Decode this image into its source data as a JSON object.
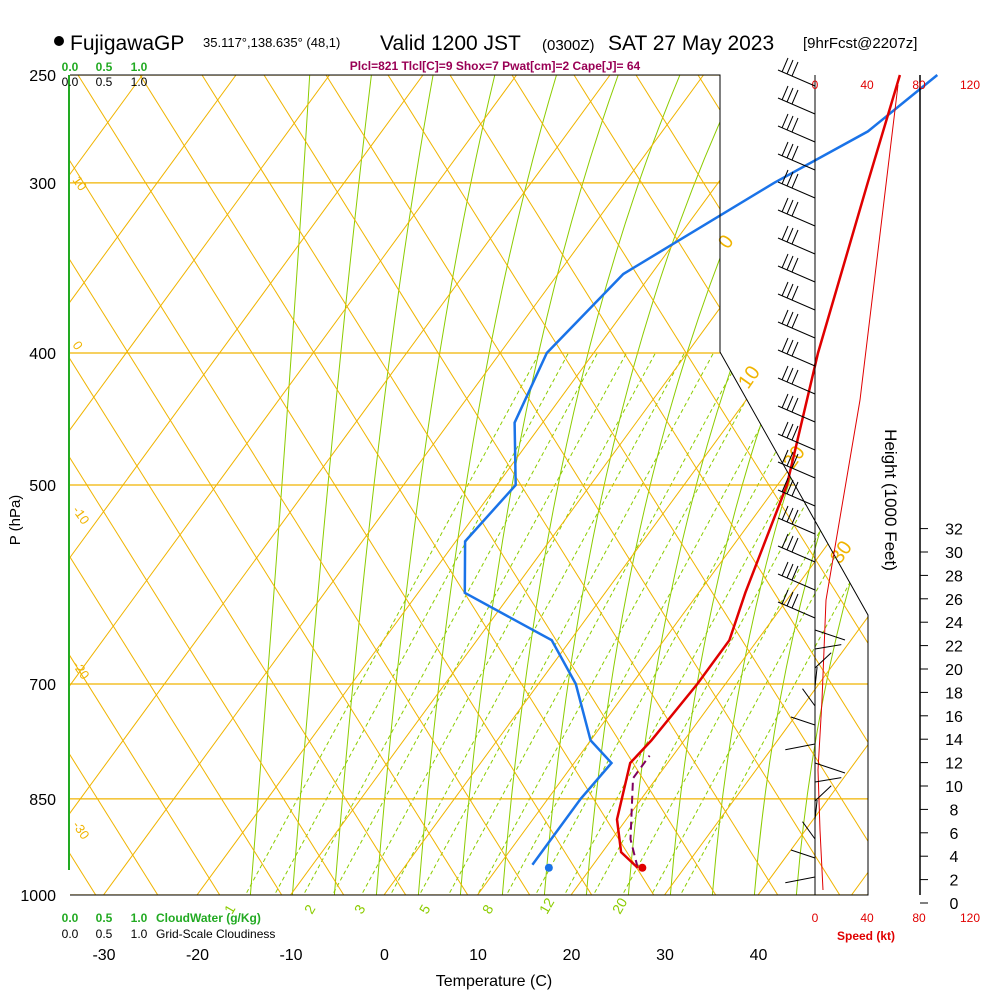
{
  "header": {
    "station": "FujigawaGP",
    "coords": "35.117°,138.635° (48,1)",
    "valid": "Valid 1200 JST",
    "zulu": "(0300Z)",
    "date": "SAT 27 May 2023",
    "fcst": "[9hrFcst@2207z]",
    "indices": "Plcl=821 Tlcl[C]=9 Shox=7 Pwat[cm]=2 Cape[J]= 64"
  },
  "colors": {
    "isobar": "#f0b400",
    "temp": "#e00000",
    "dew": "#1a73e8",
    "mixing": "#8ccc00",
    "parcel": "#800060",
    "cloud": "#22aa22",
    "speed": "#e00000"
  },
  "chart_data": {
    "type": "line",
    "xlabel": "Temperature (C)",
    "ylabel": "P (hPa)",
    "height_label": "Height (1000 Feet)",
    "xticks": [
      "-30",
      "-20",
      "-10",
      "0",
      "10",
      "20",
      "30",
      "40"
    ],
    "pressure_ticks": [
      "250",
      "300",
      "400",
      "500",
      "700",
      "850",
      "1000"
    ],
    "height_ticks": [
      "0",
      "2",
      "4",
      "6",
      "8",
      "10",
      "12",
      "14",
      "16",
      "18",
      "20",
      "22",
      "24",
      "26",
      "28",
      "30",
      "32"
    ],
    "speed_ticks": [
      "0",
      "40",
      "80",
      "120"
    ],
    "speed_label": "Speed (kt)",
    "cloud_ticks": [
      "0.0",
      "0.5",
      "1.0"
    ],
    "cloud_water_label": "CloudWater (g/Kg)",
    "cloudiness_label": "Grid-Scale Cloudiness",
    "dry_adiabat_labels": [
      "10",
      "0",
      "-10",
      "-20",
      "-30"
    ],
    "moist_adiabat_labels": [
      "0",
      "10",
      "20",
      "30"
    ],
    "mixing_ratio_labels": [
      "1",
      "2",
      "3",
      "5",
      "8",
      "12",
      "20"
    ],
    "temperature": {
      "name": "Temperature",
      "points": [
        [
          25,
          955
        ],
        [
          22,
          930
        ],
        [
          19,
          880
        ],
        [
          16,
          800
        ],
        [
          16.5,
          770
        ],
        [
          17,
          700
        ],
        [
          17,
          650
        ],
        [
          15,
          600
        ],
        [
          11,
          500
        ],
        [
          4,
          400
        ],
        [
          -4,
          300
        ],
        [
          -9,
          250
        ]
      ]
    },
    "dewpoint": {
      "name": "Dewpoint",
      "points": [
        [
          13.5,
          950
        ],
        [
          13.5,
          925
        ],
        [
          13.5,
          850
        ],
        [
          14,
          800
        ],
        [
          10,
          770
        ],
        [
          4,
          700
        ],
        [
          -2,
          650
        ],
        [
          -15,
          600
        ],
        [
          -19,
          550
        ],
        [
          -18,
          500
        ],
        [
          -23,
          450
        ],
        [
          -25,
          400
        ],
        [
          -23,
          350
        ],
        [
          -14,
          300
        ],
        [
          -8,
          275
        ],
        [
          -5,
          250
        ]
      ]
    },
    "parcel": {
      "name": "Parcel",
      "points": [
        [
          25,
          955
        ],
        [
          22,
          910
        ],
        [
          17.5,
          821
        ],
        [
          17.5,
          790
        ]
      ]
    },
    "surface_temp_marker": [
      25.5,
      955
    ],
    "surface_dew_marker": [
      15.5,
      955
    ]
  }
}
